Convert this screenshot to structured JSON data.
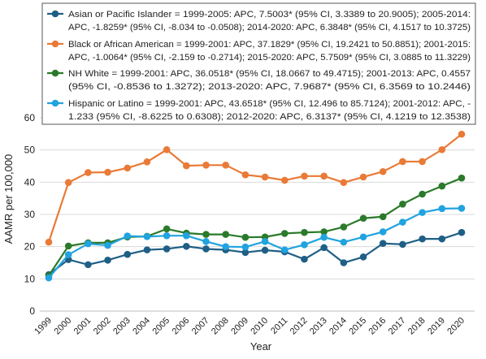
{
  "chart_data": {
    "type": "line",
    "xlabel": "Year",
    "ylabel": "AAMR per 100,000",
    "ylim": [
      0,
      60
    ],
    "yticks": [
      0,
      10,
      20,
      30,
      40,
      50,
      60
    ],
    "grid": "horizontal",
    "legend_placement": "top",
    "categories": [
      "1999",
      "2000",
      "2001",
      "2002",
      "2003",
      "2004",
      "2005",
      "2006",
      "2007",
      "2008",
      "2009",
      "2010",
      "2011",
      "2012",
      "2013",
      "2014",
      "2015",
      "2016",
      "2017",
      "2018",
      "2019",
      "2020"
    ],
    "series": [
      {
        "name": "Asian or Pacific Islander",
        "legend_lines": [
          "Asian or Pacific Islander = 1999-2005: APC, 7.5003* (95% CI, 3.3389 to 20.9005); 2005-2014:",
          "APC, -1.8259* (95% CI, -8.034 to -0.0508); 2014-2020: APC, 6.3848* (95% CI, 4.1517 to 10.3725)"
        ],
        "color": "#1f5f86",
        "values": [
          11.3,
          16.0,
          14.4,
          15.8,
          17.6,
          19.0,
          19.3,
          20.1,
          19.3,
          19.0,
          18.2,
          18.9,
          18.4,
          16.1,
          19.7,
          15.0,
          16.8,
          21.0,
          20.7,
          22.4,
          22.4,
          24.4
        ]
      },
      {
        "name": "Black or African American",
        "legend_lines": [
          "Black or African American = 1999-2001: APC, 37.1829* (95% CI, 19.2421 to 50.8851); 2001-2015:",
          "APC, -1.0064* (95% CI, -2.159 to -0.2714); 2015-2020: APC, 5.7509* (95% CI, 3.0885 to 11.3229)"
        ],
        "color": "#e97a37",
        "values": [
          21.4,
          39.9,
          43.0,
          43.1,
          44.4,
          46.3,
          50.1,
          45.1,
          45.3,
          45.3,
          42.3,
          41.6,
          40.6,
          41.9,
          41.9,
          39.9,
          41.6,
          43.3,
          46.4,
          46.4,
          50.1,
          54.9
        ]
      },
      {
        "name": "NH White",
        "legend_lines": [
          "NH White = 1999-2001: APC, 36.0518* (95% CI, 18.0667 to 49.4715); 2001-2013: APC, 0.4557",
          "(95% CI, -0.8536 to 1.3272); 2013-2020: APC, 7.9687* (95% CI, 6.3569 to 10.2446)"
        ],
        "color": "#2a7a2a",
        "values": [
          11.0,
          20.2,
          21.2,
          21.2,
          23.0,
          23.2,
          25.5,
          24.2,
          23.8,
          23.8,
          22.9,
          23.0,
          24.1,
          24.4,
          24.6,
          26.1,
          28.8,
          29.3,
          33.2,
          36.3,
          38.8,
          41.3
        ]
      },
      {
        "name": "Hispanic or Latino",
        "legend_lines": [
          "Hispanic or Latino = 1999-2001: APC, 43.6518* (95% CI, 12.496 to 85.7124); 2001-2012: APC, -",
          "1.233 (95% CI, -8.6225 to 0.6308); 2012-2020: APC, 6.3137* (95% CI, 4.1219 to 12.3538)"
        ],
        "color": "#21a3e0",
        "values": [
          10.3,
          17.5,
          20.9,
          20.4,
          23.3,
          23.1,
          23.4,
          23.4,
          21.6,
          20.0,
          19.9,
          21.6,
          19.0,
          20.6,
          22.9,
          21.4,
          23.0,
          24.6,
          27.6,
          30.6,
          31.8,
          31.9
        ]
      }
    ]
  }
}
